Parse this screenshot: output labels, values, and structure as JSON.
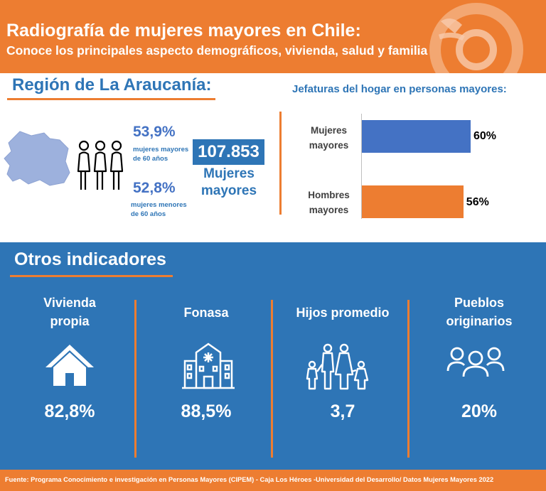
{
  "header": {
    "title": "Radiografía de mujeres mayores en Chile:",
    "subtitle": "Conoce los principales aspecto demográficos, vivienda, salud y familia"
  },
  "region": {
    "title": "Región de La Araucanía:",
    "map_icon": "region-map-icon",
    "people_icon": "women-group-icon",
    "stat1": {
      "pct": "53,9%",
      "desc_line1": "mujeres mayores",
      "desc_line2": "de 60 años"
    },
    "stat2": {
      "pct": "52,8%",
      "desc_line1": "mujeres menores",
      "desc_line2": "de 60 años"
    },
    "total": {
      "value": "107.853",
      "label_line1": "Mujeres",
      "label_line2": "mayores"
    }
  },
  "jefaturas": {
    "title": "Jefaturas del hogar en personas mayores:",
    "bars": [
      {
        "label_line1": "Mujeres",
        "label_line2": "mayores",
        "value": 60,
        "value_label": "60%",
        "color": "#4472C4"
      },
      {
        "label_line1": "Hombres",
        "label_line2": "mayores",
        "value": 56,
        "value_label": "56%",
        "color": "#ED7D31"
      }
    ]
  },
  "otros": {
    "title": "Otros indicadores",
    "items": [
      {
        "title_line1": "Vivienda",
        "title_line2": "propia",
        "icon": "house-icon",
        "value": "82,8%"
      },
      {
        "title_line1": "Fonasa",
        "title_line2": "",
        "icon": "hospital-icon",
        "value": "88,5%"
      },
      {
        "title_line1": "Hijos promedio",
        "title_line2": "",
        "icon": "family-icon",
        "value": "3,7"
      },
      {
        "title_line1": "Pueblos",
        "title_line2": "originarios",
        "icon": "people-group-icon",
        "value": "20%"
      }
    ]
  },
  "footer": {
    "source": "Fuente:  Programa Conocimiento e investigación en Personas Mayores (CIPEM)  -  Caja Los Héroes -Universidad del Desarrollo/ Datos Mujeres Mayores 2022"
  },
  "colors": {
    "orange": "#ED7D31",
    "blue": "#2E75B6",
    "bar_blue": "#4472C4"
  }
}
